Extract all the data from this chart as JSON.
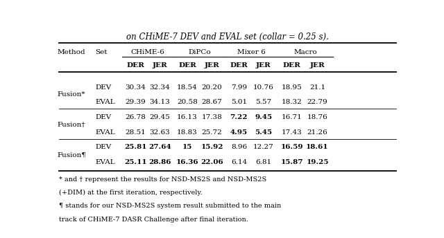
{
  "title": "on CHiME-7 DEV and EVAL set (collar = 0.25 s).",
  "col_groups": [
    {
      "label": "CHiME-6"
    },
    {
      "label": "DiPCo"
    },
    {
      "label": "Mixer 6"
    },
    {
      "label": "Macro"
    }
  ],
  "rows": [
    {
      "method": "Fusion*",
      "set": "DEV",
      "values": [
        "30.34",
        "32.34",
        "18.54",
        "20.20",
        "7.99",
        "10.76",
        "18.95",
        "21.1"
      ],
      "bold": []
    },
    {
      "method": "Fusion*",
      "set": "EVAL",
      "values": [
        "29.39",
        "34.13",
        "20.58",
        "28.67",
        "5.01",
        "5.57",
        "18.32",
        "22.79"
      ],
      "bold": []
    },
    {
      "method": "Fusion†",
      "set": "DEV",
      "values": [
        "26.78",
        "29.45",
        "16.13",
        "17.38",
        "7.22",
        "9.45",
        "16.71",
        "18.76"
      ],
      "bold": [
        4,
        5
      ]
    },
    {
      "method": "Fusion†",
      "set": "EVAL",
      "values": [
        "28.51",
        "32.63",
        "18.83",
        "25.72",
        "4.95",
        "5.45",
        "17.43",
        "21.26"
      ],
      "bold": [
        4,
        5
      ]
    },
    {
      "method": "Fusion¶",
      "set": "DEV",
      "values": [
        "25.81",
        "27.64",
        "15",
        "15.92",
        "8.96",
        "12.27",
        "16.59",
        "18.61"
      ],
      "bold": [
        0,
        1,
        2,
        3,
        6,
        7
      ]
    },
    {
      "method": "Fusion¶",
      "set": "EVAL",
      "values": [
        "25.11",
        "28.86",
        "16.36",
        "22.06",
        "6.14",
        "6.81",
        "15.87",
        "19.25"
      ],
      "bold": [
        0,
        1,
        2,
        3,
        6,
        7
      ]
    }
  ],
  "footnotes": [
    "* and † represent the results for NSD-MS2S and NSD-MS2S",
    "(+DIM) at the first iteration, respectively.",
    "¶ stands for our NSD-MS2S system result submitted to the main",
    "track of CHiME-7 DASR Challenge after final iteration."
  ],
  "method_rows": [
    [
      0,
      1
    ],
    [
      2,
      3
    ],
    [
      4,
      5
    ]
  ],
  "method_label_row": [
    0,
    2,
    4
  ]
}
